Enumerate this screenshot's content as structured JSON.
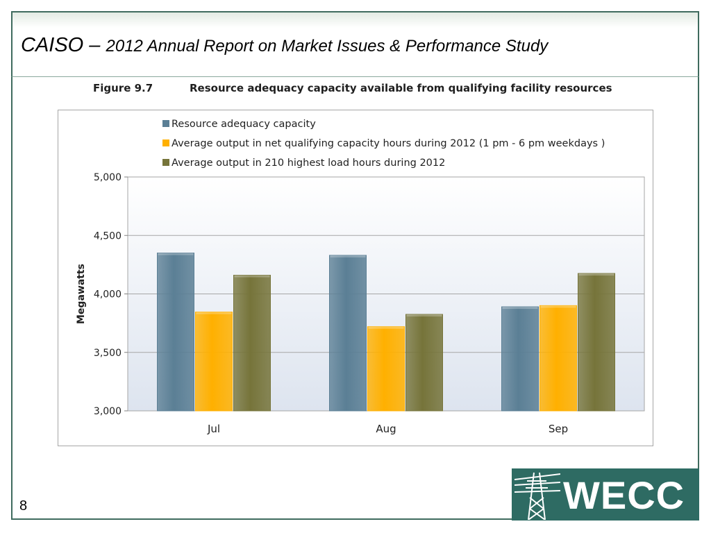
{
  "slide": {
    "title_main": "CAISO – ",
    "title_sub": "2012 Annual Report on Market Issues & Performance Study",
    "slide_number": "8"
  },
  "figure": {
    "label": "Figure 9.7",
    "caption": "Resource adequacy capacity available from qualifying facility resources"
  },
  "logo": {
    "text": "WECC",
    "icon": "transmission-tower-icon",
    "color": "#2e6b63"
  },
  "chart_data": {
    "type": "bar",
    "categories": [
      "Jul",
      "Aug",
      "Sep"
    ],
    "series": [
      {
        "name": "Resource adequacy capacity",
        "values": [
          4350,
          4330,
          3890
        ],
        "color": "#5b7f95"
      },
      {
        "name": "Average output in net qualifying capacity hours during 2012 (1 pm - 6 pm weekdays )",
        "values": [
          3845,
          3720,
          3900
        ],
        "color": "#ffb000"
      },
      {
        "name": "Average output in 210 highest load hours during 2012",
        "values": [
          4160,
          3825,
          4175
        ],
        "color": "#76743a"
      }
    ],
    "ylabel": "Megawatts",
    "ylim": [
      3000,
      5000
    ],
    "yticks": [
      3000,
      3500,
      4000,
      4500,
      5000
    ],
    "ytick_labels": [
      "3,000",
      "3,500",
      "4,000",
      "4,500",
      "5,000"
    ],
    "legend_position": "top-left",
    "grid": true
  }
}
